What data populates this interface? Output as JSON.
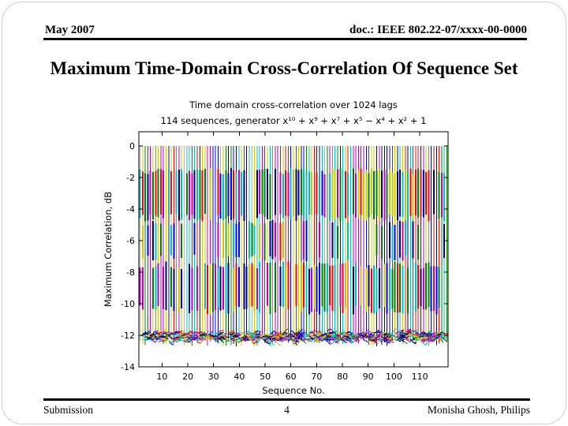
{
  "page": {
    "background": "#ffffff",
    "border_color": "#cfcfcf"
  },
  "header": {
    "date": "May 2007",
    "doc": "doc.: IEEE 802.22-07/xxxx-00-0000"
  },
  "slide_title": "Maximum Time-Domain Cross-Correlation Of Sequence Set",
  "footer": {
    "left": "Submission",
    "page_number": "4",
    "right": "Monisha Ghosh, Philips"
  },
  "chart_data": {
    "type": "line",
    "title": "Time domain cross-correlation over 1024 lags",
    "subtitle": "114 sequences, generator x¹⁰ + x⁹ + x⁷ + x⁵ − x⁴ + x² + 1",
    "xlabel": "Sequence No.",
    "ylabel": "Maximum Correlation, dB",
    "n_sequences": 114,
    "xlim": [
      1,
      121
    ],
    "ylim": [
      -14,
      0.9
    ],
    "xticks": [
      10,
      20,
      30,
      40,
      50,
      60,
      70,
      80,
      90,
      100,
      110
    ],
    "yticks": [
      0,
      -2,
      -4,
      -6,
      -8,
      -10,
      -12,
      -14
    ],
    "grid": false,
    "legend": false,
    "series_summary": "114 overlapping maximum cross-correlation traces; each oscillates between a peak of 0 dB and a noise floor near -12 dB, appearing as dense multicolored vertical strokes across all sequence numbers",
    "envelope_top_db": 0,
    "noise_floor_db": -12.1,
    "noise_band_halfwidth_db": 0.5,
    "dense_bands_db": [
      [
        -1.4,
        -4.6
      ],
      [
        -7.3,
        -10.4
      ]
    ],
    "axis_color": "#000000",
    "palette": [
      "#0000ff",
      "#008000",
      "#ff0000",
      "#00bfbf",
      "#bf00bf",
      "#c8c800",
      "#000080"
    ]
  }
}
